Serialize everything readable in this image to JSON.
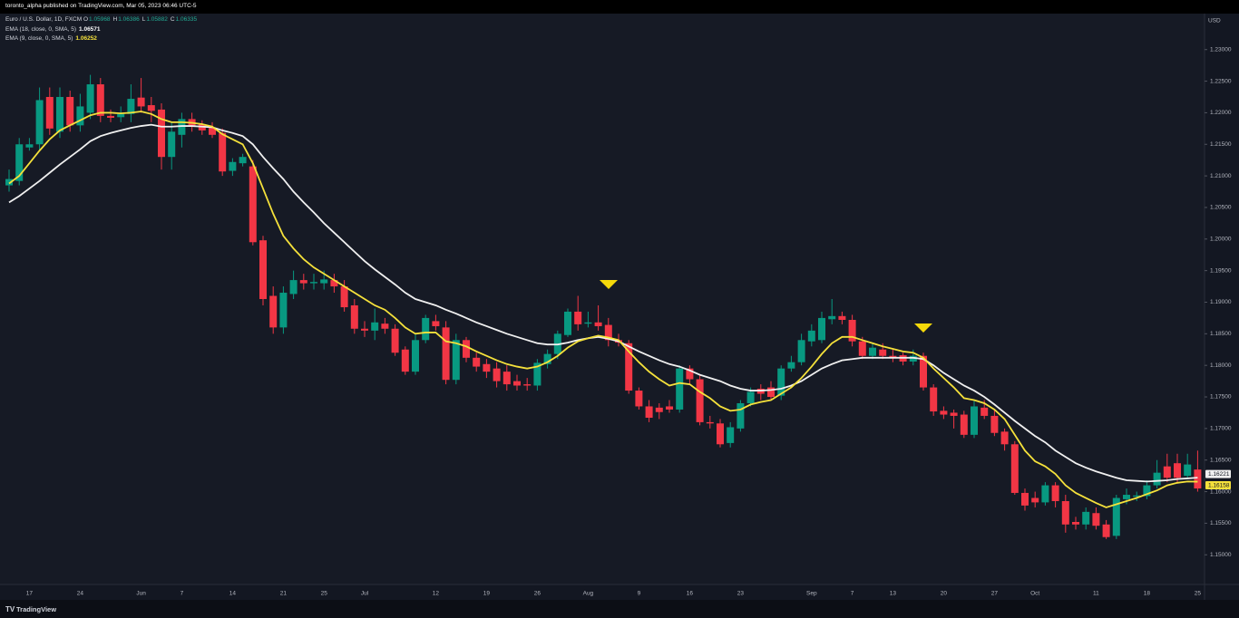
{
  "banner": "toronto_alpha published on TradingView.com, Mar 05, 2023 06:46 UTC-5",
  "brand": "TradingView",
  "chart_data": {
    "type": "candlestick",
    "symbol": "Euro / U.S. Dollar, 1D, FXCM",
    "ohlc_header": [
      {
        "key": "O",
        "value": "1.05968"
      },
      {
        "key": "H",
        "value": "1.06386"
      },
      {
        "key": "L",
        "value": "1.05882"
      },
      {
        "key": "C",
        "value": "1.06335"
      }
    ],
    "currency": "USD",
    "up_color": "#089981",
    "down_color": "#f23645",
    "categories": [
      null,
      null,
      "17",
      null,
      null,
      null,
      null,
      "24",
      null,
      null,
      null,
      null,
      null,
      "Jun",
      null,
      null,
      null,
      "7",
      null,
      null,
      null,
      null,
      "14",
      null,
      null,
      null,
      null,
      "21",
      null,
      null,
      null,
      "25",
      null,
      null,
      null,
      "Jul",
      null,
      null,
      null,
      null,
      null,
      null,
      "12",
      null,
      null,
      null,
      null,
      "19",
      null,
      null,
      null,
      null,
      "26",
      null,
      null,
      null,
      null,
      "Aug",
      null,
      null,
      null,
      null,
      "9",
      null,
      null,
      null,
      null,
      "16",
      null,
      null,
      null,
      null,
      "23",
      null,
      null,
      null,
      null,
      null,
      null,
      "Sep",
      null,
      null,
      null,
      "7",
      null,
      null,
      null,
      "13",
      null,
      null,
      null,
      null,
      "20",
      null,
      null,
      null,
      null,
      "27",
      null,
      null,
      null,
      "Oct",
      null,
      null,
      null,
      null,
      null,
      "11",
      null,
      null,
      null,
      null,
      "18",
      null,
      null,
      null,
      null,
      "25"
    ],
    "candles": {
      "open": [
        1.2085,
        1.2092,
        1.2145,
        1.215,
        1.2225,
        1.217,
        1.2225,
        1.218,
        1.22,
        1.2245,
        1.2195,
        1.2193,
        1.2198,
        1.2224,
        1.2212,
        1.2205,
        1.213,
        1.2165,
        1.219,
        1.2182,
        1.2176,
        1.2168,
        1.2108,
        1.212,
        1.2115,
        1.1998,
        1.191,
        1.186,
        1.1913,
        1.1935,
        1.193,
        1.193,
        1.1935,
        1.1925,
        1.1895,
        1.1858,
        1.1855,
        1.1866,
        1.1858,
        1.1825,
        1.179,
        1.184,
        1.187,
        1.186,
        1.1777,
        1.184,
        1.1812,
        1.1802,
        1.1795,
        1.179,
        1.1775,
        1.177,
        1.1768,
        1.1802,
        1.1818,
        1.1848,
        1.1885,
        1.1866,
        1.1868,
        1.1864,
        1.184,
        1.1835,
        1.176,
        1.1735,
        1.1733,
        1.1735,
        1.173,
        1.1795,
        1.1778,
        1.171,
        1.1708,
        1.1677,
        1.17,
        1.174,
        1.1763,
        1.1765,
        1.1752,
        1.1795,
        1.1805,
        1.1838,
        1.184,
        1.1873,
        1.1878,
        1.1872,
        1.1838,
        1.1815,
        1.1825,
        1.1815,
        1.1816,
        1.1806,
        1.1815,
        1.1765,
        1.1728,
        1.1725,
        1.1722,
        1.169,
        1.1733,
        1.172,
        1.1695,
        1.1675,
        1.1598,
        1.159,
        1.1583,
        1.161,
        1.1585,
        1.1552,
        1.1548,
        1.1566,
        1.1548,
        1.153,
        1.1588,
        1.1592,
        1.1593,
        1.161,
        1.164,
        1.1645,
        1.1625,
        1.1635
      ],
      "high": [
        1.211,
        1.216,
        1.216,
        1.224,
        1.224,
        1.224,
        1.2235,
        1.223,
        1.226,
        1.2255,
        1.2205,
        1.221,
        1.2245,
        1.2255,
        1.2225,
        1.2215,
        1.2185,
        1.22,
        1.22,
        1.2188,
        1.2185,
        1.2175,
        1.2128,
        1.2135,
        1.2125,
        1.2005,
        1.1925,
        1.1925,
        1.195,
        1.1945,
        1.1945,
        1.195,
        1.1945,
        1.1935,
        1.1905,
        1.187,
        1.189,
        1.1875,
        1.1865,
        1.183,
        1.185,
        1.188,
        1.188,
        1.187,
        1.185,
        1.1845,
        1.182,
        1.181,
        1.1805,
        1.18,
        1.1785,
        1.178,
        1.181,
        1.1825,
        1.1855,
        1.189,
        1.191,
        1.1885,
        1.1895,
        1.1875,
        1.185,
        1.184,
        1.1765,
        1.1745,
        1.174,
        1.1745,
        1.18,
        1.18,
        1.1785,
        1.172,
        1.1715,
        1.171,
        1.1745,
        1.1765,
        1.177,
        1.1775,
        1.18,
        1.1815,
        1.185,
        1.1865,
        1.1885,
        1.1905,
        1.1885,
        1.188,
        1.1845,
        1.1835,
        1.1835,
        1.1825,
        1.182,
        1.1825,
        1.182,
        1.177,
        1.1735,
        1.173,
        1.1728,
        1.1745,
        1.1745,
        1.173,
        1.17,
        1.168,
        1.1605,
        1.16,
        1.1615,
        1.1615,
        1.1595,
        1.156,
        1.1575,
        1.1575,
        1.1555,
        1.1595,
        1.1605,
        1.16,
        1.1618,
        1.165,
        1.166,
        1.166,
        1.166,
        1.1665
      ],
      "low": [
        1.2075,
        1.2085,
        1.214,
        1.214,
        1.2165,
        1.216,
        1.217,
        1.217,
        1.219,
        1.2185,
        1.2185,
        1.2185,
        1.2185,
        1.22,
        1.2185,
        1.211,
        1.211,
        1.2145,
        1.217,
        1.2165,
        1.216,
        1.21,
        1.21,
        1.2115,
        1.199,
        1.1895,
        1.185,
        1.185,
        1.1905,
        1.192,
        1.192,
        1.192,
        1.1915,
        1.1885,
        1.185,
        1.1845,
        1.184,
        1.185,
        1.1815,
        1.1785,
        1.1785,
        1.1835,
        1.1855,
        1.177,
        1.177,
        1.1805,
        1.179,
        1.178,
        1.1765,
        1.176,
        1.176,
        1.176,
        1.176,
        1.1795,
        1.181,
        1.1845,
        1.1855,
        1.186,
        1.1855,
        1.183,
        1.183,
        1.1755,
        1.173,
        1.171,
        1.1715,
        1.1725,
        1.1725,
        1.177,
        1.1705,
        1.17,
        1.167,
        1.167,
        1.1695,
        1.1735,
        1.1745,
        1.1745,
        1.1745,
        1.179,
        1.18,
        1.183,
        1.1835,
        1.1865,
        1.1865,
        1.183,
        1.181,
        1.181,
        1.181,
        1.1805,
        1.18,
        1.18,
        1.176,
        1.172,
        1.1715,
        1.17,
        1.1685,
        1.1685,
        1.1715,
        1.1688,
        1.1665,
        1.1595,
        1.157,
        1.1575,
        1.1578,
        1.1575,
        1.1535,
        1.154,
        1.154,
        1.154,
        1.1525,
        1.1525,
        1.158,
        1.1585,
        1.1588,
        1.1605,
        1.1615,
        1.1615,
        1.162,
        1.16
      ],
      "close": [
        1.2095,
        1.215,
        1.215,
        1.222,
        1.2175,
        1.2225,
        1.218,
        1.221,
        1.2245,
        1.2195,
        1.2192,
        1.2198,
        1.2222,
        1.221,
        1.2203,
        1.213,
        1.217,
        1.219,
        1.2178,
        1.2172,
        1.2165,
        1.2107,
        1.2122,
        1.213,
        1.1995,
        1.1905,
        1.186,
        1.1915,
        1.1935,
        1.193,
        1.1932,
        1.1936,
        1.1925,
        1.1892,
        1.1858,
        1.1855,
        1.1868,
        1.1858,
        1.182,
        1.179,
        1.184,
        1.1875,
        1.1862,
        1.1777,
        1.184,
        1.1812,
        1.1798,
        1.179,
        1.1775,
        1.177,
        1.1768,
        1.1768,
        1.1804,
        1.1818,
        1.185,
        1.1885,
        1.1865,
        1.1868,
        1.1862,
        1.184,
        1.1836,
        1.176,
        1.1735,
        1.1717,
        1.1726,
        1.173,
        1.1795,
        1.1778,
        1.171,
        1.1708,
        1.1675,
        1.1702,
        1.174,
        1.1758,
        1.1755,
        1.175,
        1.1795,
        1.1805,
        1.184,
        1.1855,
        1.1875,
        1.1878,
        1.1872,
        1.1838,
        1.1815,
        1.1828,
        1.1815,
        1.1812,
        1.1806,
        1.1815,
        1.1765,
        1.1727,
        1.1722,
        1.172,
        1.169,
        1.1735,
        1.172,
        1.1693,
        1.1675,
        1.1598,
        1.1578,
        1.1583,
        1.161,
        1.1585,
        1.1548,
        1.1548,
        1.1568,
        1.1546,
        1.1528,
        1.159,
        1.1595,
        1.1594,
        1.161,
        1.163,
        1.1622,
        1.1622,
        1.1643,
        1.1605
      ]
    },
    "series": [
      {
        "name": "EMA (18, close, 0, SMA, 5)",
        "header_value": "1.06571",
        "color": "#f0f0f0",
        "values": [
          1.2058,
          1.2068,
          1.208,
          1.2092,
          1.2105,
          1.2118,
          1.213,
          1.2142,
          1.2155,
          1.2163,
          1.2168,
          1.2172,
          1.2176,
          1.2179,
          1.2181,
          1.2178,
          1.2178,
          1.2179,
          1.2179,
          1.2178,
          1.2177,
          1.2172,
          1.2168,
          1.2163,
          1.215,
          1.213,
          1.2112,
          1.2095,
          1.2075,
          1.2058,
          1.2042,
          1.2025,
          1.201,
          1.1995,
          1.198,
          1.1965,
          1.1952,
          1.194,
          1.1928,
          1.1915,
          1.1905,
          1.19,
          1.1895,
          1.1888,
          1.1882,
          1.1875,
          1.1868,
          1.1862,
          1.1856,
          1.185,
          1.1845,
          1.184,
          1.1835,
          1.1833,
          1.1833,
          1.1836,
          1.184,
          1.1843,
          1.1845,
          1.1842,
          1.1838,
          1.183,
          1.1822,
          1.1815,
          1.1808,
          1.1802,
          1.1798,
          1.1792,
          1.1785,
          1.178,
          1.1775,
          1.1768,
          1.1763,
          1.176,
          1.176,
          1.1761,
          1.1763,
          1.1768,
          1.1775,
          1.1785,
          1.1795,
          1.1802,
          1.1808,
          1.181,
          1.1812,
          1.1812,
          1.1812,
          1.1812,
          1.1812,
          1.1812,
          1.181,
          1.18,
          1.1788,
          1.1778,
          1.1768,
          1.176,
          1.175,
          1.1738,
          1.1725,
          1.1712,
          1.17,
          1.1688,
          1.1678,
          1.1665,
          1.1655,
          1.1645,
          1.1638,
          1.1632,
          1.1627,
          1.1622,
          1.1618,
          1.1617,
          1.1616,
          1.1617,
          1.1618,
          1.162,
          1.1621,
          1.16221
        ]
      },
      {
        "name": "EMA (9, close, 0, SMA, 5)",
        "header_value": "1.06252",
        "color": "#f5e13b",
        "values": [
          1.2088,
          1.21,
          1.212,
          1.214,
          1.2158,
          1.2172,
          1.218,
          1.2188,
          1.2196,
          1.22,
          1.22,
          1.2199,
          1.22,
          1.2202,
          1.2198,
          1.219,
          1.2185,
          1.2185,
          1.2184,
          1.2182,
          1.2178,
          1.2166,
          1.2158,
          1.215,
          1.212,
          1.208,
          1.204,
          1.2005,
          1.1985,
          1.1968,
          1.1955,
          1.1945,
          1.1935,
          1.1925,
          1.1915,
          1.1905,
          1.1895,
          1.1888,
          1.1875,
          1.186,
          1.185,
          1.1852,
          1.1852,
          1.1838,
          1.1835,
          1.183,
          1.1822,
          1.1815,
          1.1808,
          1.1802,
          1.1798,
          1.1795,
          1.1798,
          1.1805,
          1.1815,
          1.1828,
          1.1838,
          1.1843,
          1.1847,
          1.1844,
          1.184,
          1.1822,
          1.1805,
          1.179,
          1.1778,
          1.1768,
          1.1772,
          1.177,
          1.1758,
          1.1748,
          1.1735,
          1.1728,
          1.173,
          1.1738,
          1.1742,
          1.1745,
          1.1755,
          1.1765,
          1.178,
          1.1798,
          1.1818,
          1.1835,
          1.1845,
          1.1845,
          1.184,
          1.1835,
          1.183,
          1.1826,
          1.1822,
          1.182,
          1.1812,
          1.1795,
          1.178,
          1.1765,
          1.1748,
          1.1745,
          1.174,
          1.173,
          1.1715,
          1.169,
          1.1665,
          1.1648,
          1.164,
          1.1628,
          1.161,
          1.1598,
          1.159,
          1.1582,
          1.1575,
          1.158,
          1.1585,
          1.159,
          1.1596,
          1.1602,
          1.161,
          1.1614,
          1.1616,
          1.16158
        ]
      }
    ],
    "ylim": [
      1.1453,
      1.2357
    ],
    "yticks": [
      {
        "value": 1.15,
        "label": "1.15000"
      },
      {
        "value": 1.155,
        "label": "1.15500"
      },
      {
        "value": 1.16,
        "label": "1.16000"
      },
      {
        "value": 1.165,
        "label": "1.16500"
      },
      {
        "value": 1.17,
        "label": "1.17000"
      },
      {
        "value": 1.175,
        "label": "1.17500"
      },
      {
        "value": 1.18,
        "label": "1.18000"
      },
      {
        "value": 1.185,
        "label": "1.18500"
      },
      {
        "value": 1.19,
        "label": "1.19000"
      },
      {
        "value": 1.195,
        "label": "1.19500"
      },
      {
        "value": 1.2,
        "label": "1.20000"
      },
      {
        "value": 1.205,
        "label": "1.20500"
      },
      {
        "value": 1.21,
        "label": "1.21000"
      },
      {
        "value": 1.215,
        "label": "1.21500"
      },
      {
        "value": 1.22,
        "label": "1.22000"
      },
      {
        "value": 1.225,
        "label": "1.22500"
      },
      {
        "value": 1.23,
        "label": "1.23000"
      }
    ],
    "grid": false
  }
}
